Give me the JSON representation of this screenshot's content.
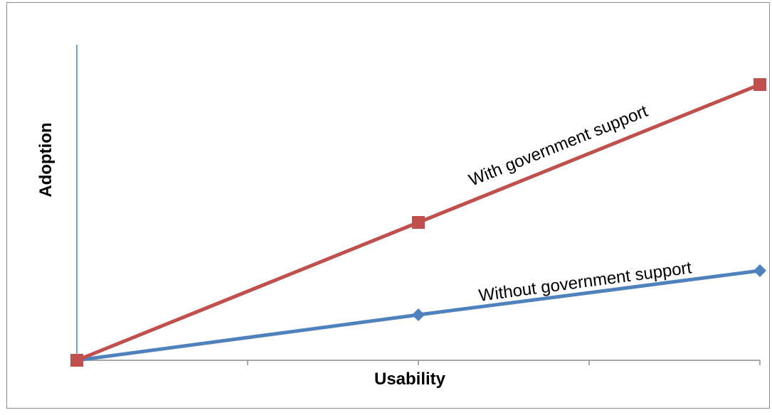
{
  "chart_data": {
    "type": "line",
    "title": "",
    "xlabel": "Usability",
    "ylabel": "Adoption",
    "x": [
      0,
      1,
      2
    ],
    "xlim": [
      0,
      2
    ],
    "ylim": [
      0,
      2
    ],
    "x_tick_count": 5,
    "grid": false,
    "legend": "none",
    "series": [
      {
        "name": "With government support",
        "values": [
          0,
          1,
          2
        ],
        "color": "#C0504D",
        "marker": "square"
      },
      {
        "name": "Without  government support",
        "values": [
          0,
          0.33,
          0.65
        ],
        "color": "#4F81BD",
        "marker": "diamond"
      }
    ]
  }
}
